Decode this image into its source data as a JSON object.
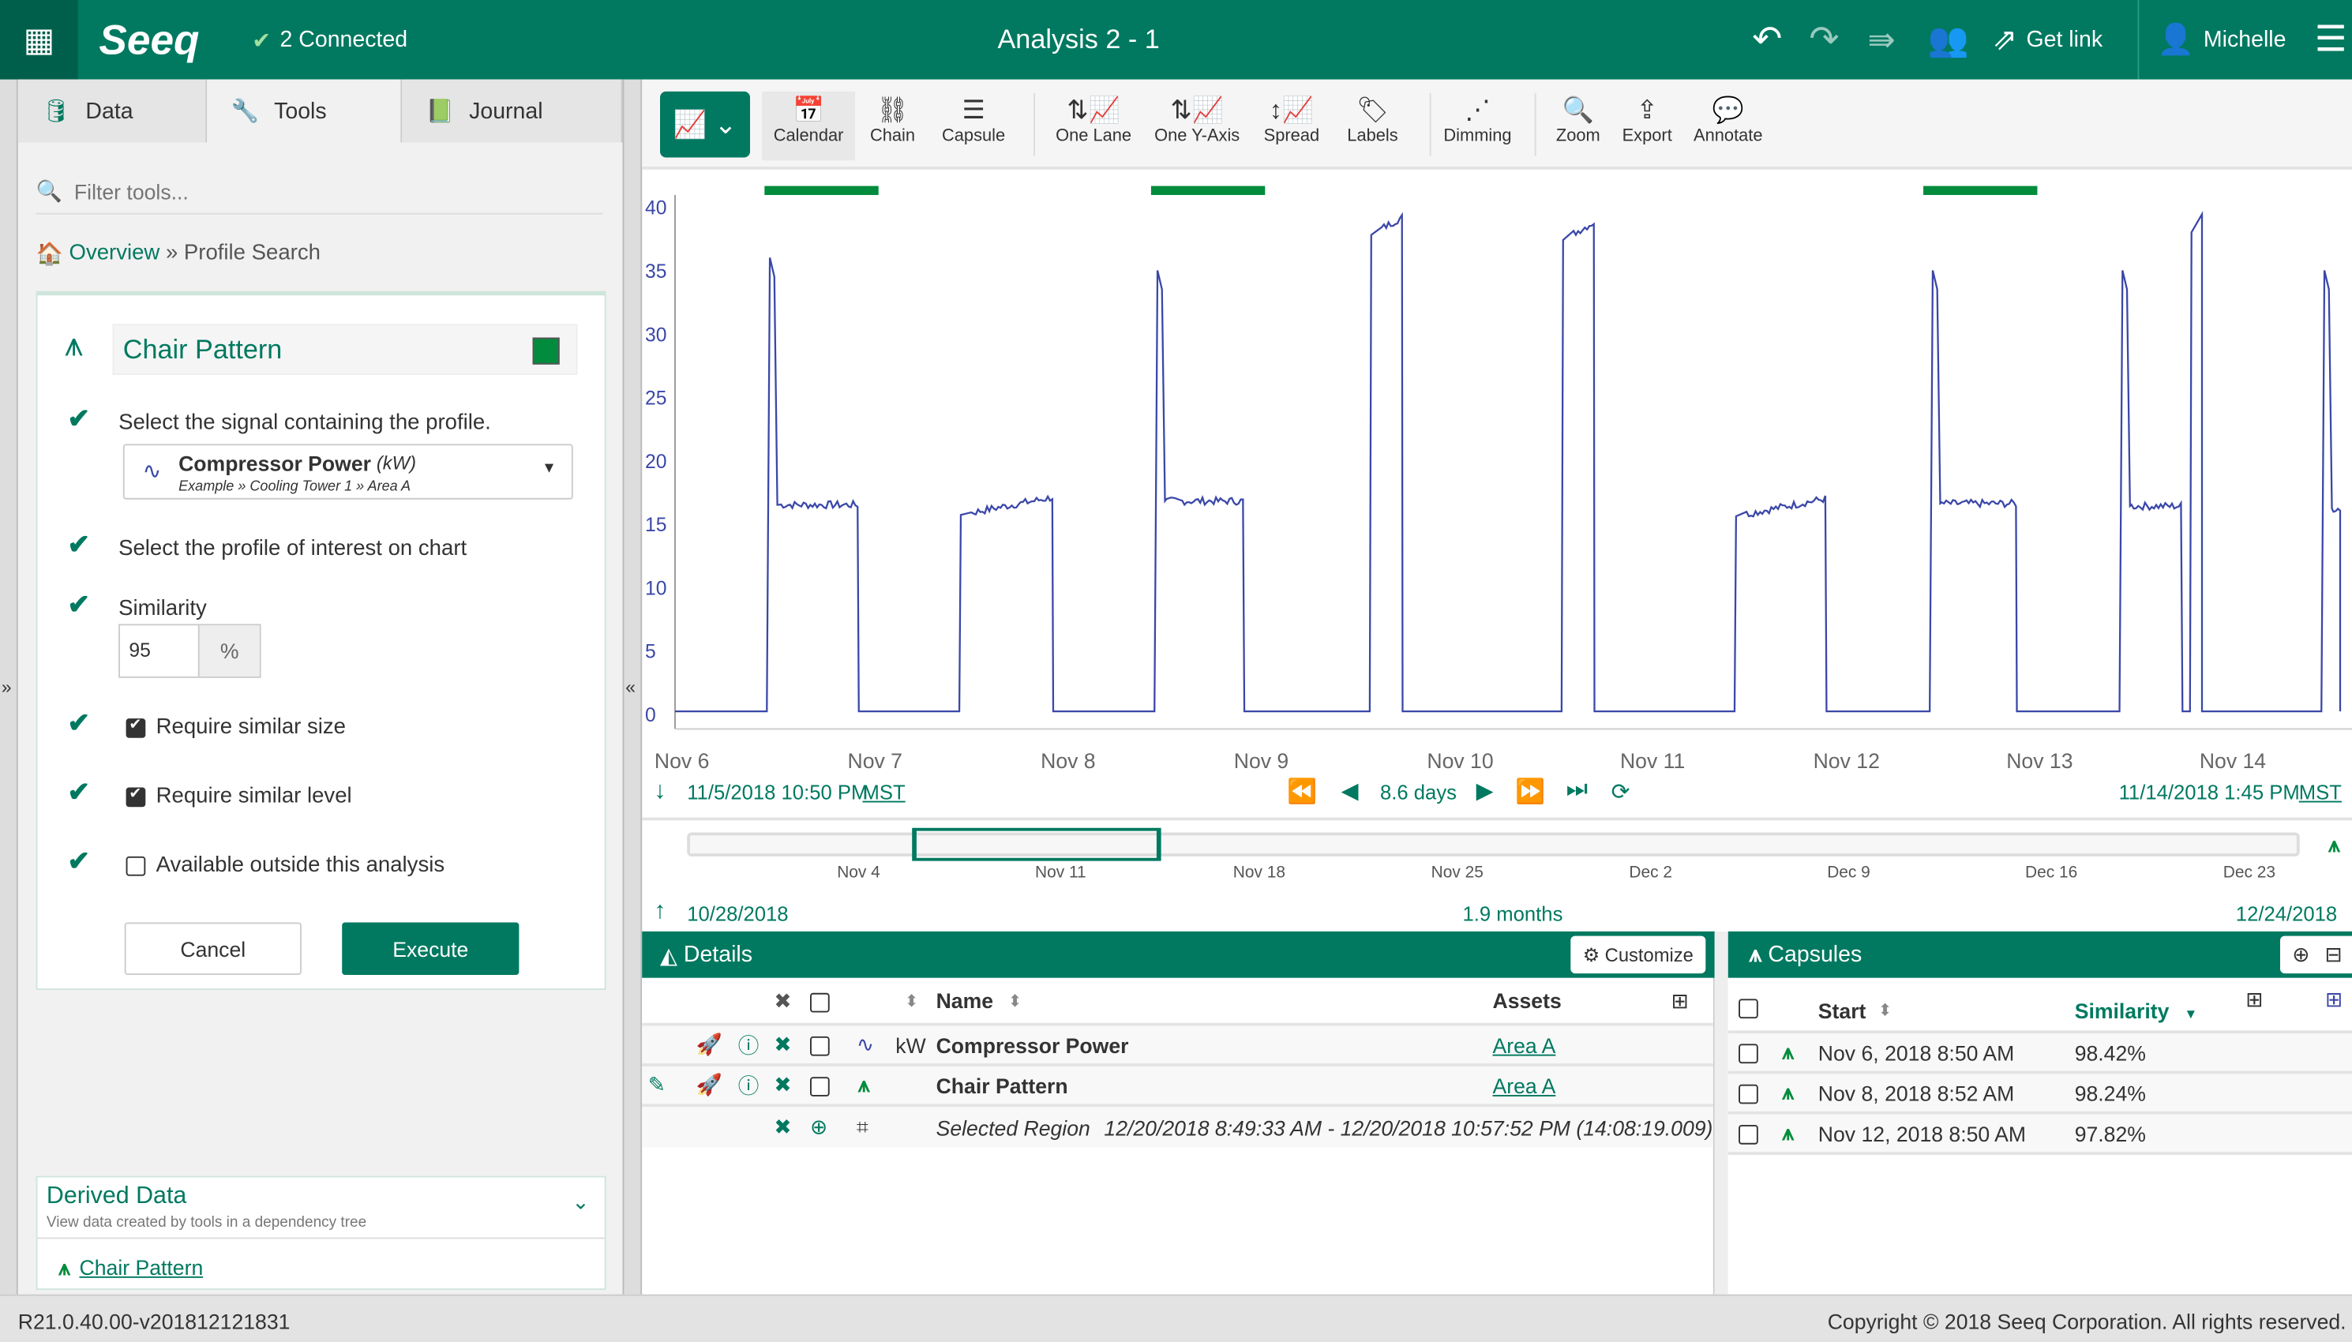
{
  "topbar": {
    "logo": "Seeq",
    "connected": "2 Connected",
    "title": "Analysis 2 - 1",
    "get_link": "Get link",
    "user": "Michelle",
    "color": "#007960"
  },
  "left_tabs": [
    {
      "label": "Data"
    },
    {
      "label": "Tools"
    },
    {
      "label": "Journal"
    }
  ],
  "filter_placeholder": "Filter tools...",
  "breadcrumb": {
    "home": "Overview",
    "sep": "»",
    "current": "Profile Search"
  },
  "tool": {
    "name": "Chair Pattern",
    "color": "#008c3c",
    "step1": "Select the signal containing the profile.",
    "signal_name": "Compressor Power",
    "signal_unit": "(kW)",
    "signal_path": "Example » Cooling Tower 1 » Area A",
    "step2": "Select the profile of interest on chart",
    "similarity_label": "Similarity",
    "similarity_value": "95",
    "similarity_unit": "%",
    "require_size": "Require similar size",
    "require_size_checked": true,
    "require_level": "Require similar level",
    "require_level_checked": true,
    "outside": "Available outside this analysis",
    "outside_checked": false,
    "cancel": "Cancel",
    "execute": "Execute"
  },
  "derived": {
    "title": "Derived Data",
    "subtitle": "View data created by tools in a dependency tree",
    "item": "Chair Pattern"
  },
  "toolbar": [
    "Calendar",
    "Chain",
    "Capsule",
    "One Lane",
    "One Y-Axis",
    "Spread",
    "Labels",
    "Dimming",
    "Zoom",
    "Export",
    "Annotate"
  ],
  "chart_data": {
    "type": "line",
    "series": [
      {
        "name": "Compressor Power",
        "unit": "kW",
        "color": "#3a47a8"
      }
    ],
    "ylim": [
      0,
      40
    ],
    "yticks": [
      0,
      5,
      10,
      15,
      20,
      25,
      30,
      35,
      40
    ],
    "xlim": [
      "2018-11-05T22:50",
      "2018-11-14T13:45"
    ],
    "xticks": [
      "Nov 6",
      "Nov 7",
      "Nov 8",
      "Nov 9",
      "Nov 10",
      "Nov 11",
      "Nov 12",
      "Nov 13",
      "Nov 14"
    ],
    "pulses": [
      {
        "start": "2018-11-06T10:15",
        "end": "2018-11-06T21:40",
        "peak": 36,
        "plateau": 16.5
      },
      {
        "start": "2018-11-07T10:10",
        "end": "2018-11-07T21:50",
        "peak": 16,
        "plateau": 16.5
      },
      {
        "start": "2018-11-08T10:25",
        "end": "2018-11-08T21:35",
        "peak": 35,
        "plateau": 16.8
      },
      {
        "start": "2018-11-09T13:10",
        "end": "2018-11-09T17:15",
        "peak": 38.8,
        "plateau": 38.6
      },
      {
        "start": "2018-11-10T13:00",
        "end": "2018-11-10T17:05",
        "peak": 38.5,
        "plateau": 38.2
      },
      {
        "start": "2018-11-11T10:30",
        "end": "2018-11-11T21:55",
        "peak": 15.8,
        "plateau": 16.4
      },
      {
        "start": "2018-11-12T10:45",
        "end": "2018-11-12T21:35",
        "peak": 35,
        "plateau": 16.6
      },
      {
        "start": "2018-11-13T10:20",
        "end": "2018-11-13T18:10",
        "peak": 35,
        "plateau": 16.4
      },
      {
        "start": "2018-11-13T19:05",
        "end": "2018-11-13T20:35",
        "peak": 39,
        "plateau": 38.8
      },
      {
        "start": "2018-11-14T11:25",
        "end": "2018-11-14T13:45",
        "peak": 35,
        "plateau": 16.2
      }
    ],
    "capsules": [
      {
        "start": "2018-11-06T08:50",
        "end": "2018-11-06T23:00"
      },
      {
        "start": "2018-11-08T08:52",
        "end": "2018-11-08T23:00"
      },
      {
        "start": "2018-11-12T08:50",
        "end": "2018-11-12T23:00"
      }
    ]
  },
  "timebar": {
    "start": "11/5/2018 10:50 PM",
    "end": "11/14/2018 1:45 PM",
    "tz": "MST",
    "duration": "8.6 days"
  },
  "navigator": {
    "ticks": [
      "Nov 4",
      "Nov 11",
      "Nov 18",
      "Nov 25",
      "Dec 2",
      "Dec 9",
      "Dec 16",
      "Dec 23"
    ],
    "start": "10/28/2018",
    "end": "12/24/2018",
    "duration": "1.9 months"
  },
  "details": {
    "title": "Details",
    "customize": "Customize",
    "col_name": "Name",
    "col_assets": "Assets",
    "rows": [
      {
        "unit": "kW",
        "name": "Compressor Power",
        "asset": "Area A"
      },
      {
        "unit": "",
        "name": "Chair Pattern",
        "asset": "Area A"
      }
    ],
    "selected_label": "Selected Region",
    "selected_value": "12/20/2018 8:49:33 AM - 12/20/2018 10:57:52 PM (14:08:19.009)"
  },
  "capsules": {
    "title": "Capsules",
    "col_start": "Start",
    "col_similarity": "Similarity",
    "rows": [
      {
        "start": "Nov 6, 2018 8:50 AM",
        "similarity": "98.42%"
      },
      {
        "start": "Nov 8, 2018 8:52 AM",
        "similarity": "98.24%"
      },
      {
        "start": "Nov 12, 2018 8:50 AM",
        "similarity": "97.82%"
      }
    ]
  },
  "footer": {
    "version": "R21.0.40.00-v201812121831",
    "copyright": "Copyright © 2018 Seeq Corporation. All rights reserved."
  }
}
